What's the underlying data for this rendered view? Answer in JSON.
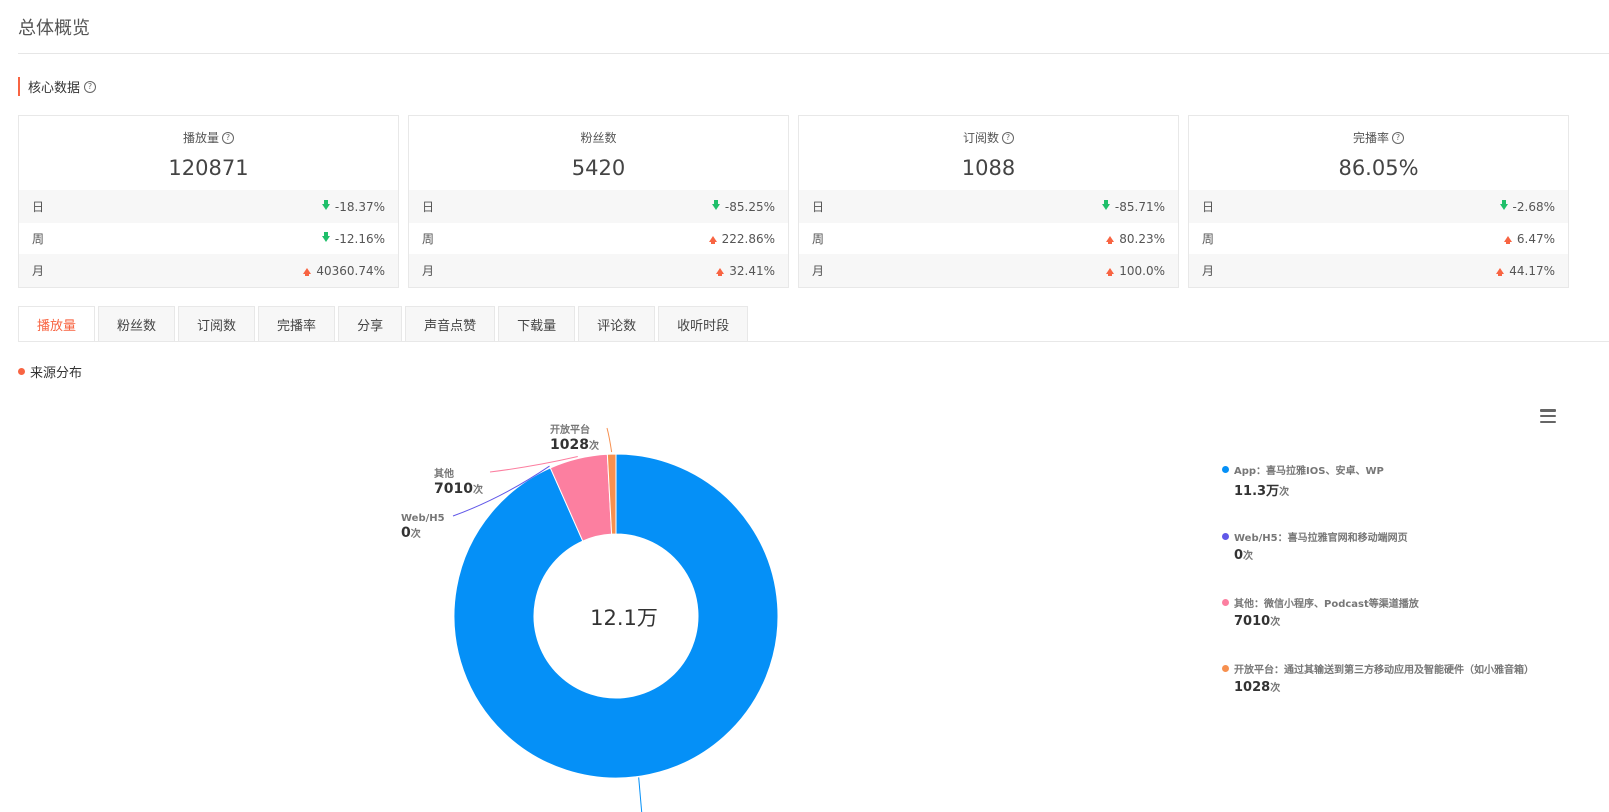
{
  "page": {
    "title": "总体概览"
  },
  "core": {
    "heading": "核心数据",
    "cards": [
      {
        "title": "播放量",
        "has_help": true,
        "value": "120871",
        "rows": [
          {
            "label": "日",
            "dir": "down",
            "change": "-18.37%"
          },
          {
            "label": "周",
            "dir": "down",
            "change": "-12.16%"
          },
          {
            "label": "月",
            "dir": "up",
            "change": "40360.74%"
          }
        ]
      },
      {
        "title": "粉丝数",
        "has_help": false,
        "value": "5420",
        "rows": [
          {
            "label": "日",
            "dir": "down",
            "change": "-85.25%"
          },
          {
            "label": "周",
            "dir": "up",
            "change": "222.86%"
          },
          {
            "label": "月",
            "dir": "up",
            "change": "32.41%"
          }
        ]
      },
      {
        "title": "订阅数",
        "has_help": true,
        "value": "1088",
        "rows": [
          {
            "label": "日",
            "dir": "down",
            "change": "-85.71%"
          },
          {
            "label": "周",
            "dir": "up",
            "change": "80.23%"
          },
          {
            "label": "月",
            "dir": "up",
            "change": "100.0%"
          }
        ]
      },
      {
        "title": "完播率",
        "has_help": true,
        "value": "86.05%",
        "rows": [
          {
            "label": "日",
            "dir": "down",
            "change": "-2.68%"
          },
          {
            "label": "周",
            "dir": "up",
            "change": "6.47%"
          },
          {
            "label": "月",
            "dir": "up",
            "change": "44.17%"
          }
        ]
      }
    ]
  },
  "tabs": [
    {
      "label": "播放量",
      "active": true
    },
    {
      "label": "粉丝数",
      "active": false
    },
    {
      "label": "订阅数",
      "active": false
    },
    {
      "label": "完播率",
      "active": false
    },
    {
      "label": "分享",
      "active": false
    },
    {
      "label": "声音点赞",
      "active": false
    },
    {
      "label": "下载量",
      "active": false
    },
    {
      "label": "评论数",
      "active": false
    },
    {
      "label": "收听时段",
      "active": false
    }
  ],
  "source": {
    "heading": "来源分布"
  },
  "chart_data": {
    "type": "pie",
    "center_label": "12.1万",
    "unit": "次",
    "series": [
      {
        "name": "App",
        "label": "",
        "value": 113000,
        "display": "11.3万",
        "color": "#0590f7",
        "legend": "App：喜马拉雅IOS、安卓、WP"
      },
      {
        "name": "Web/H5",
        "label": "Web/H5",
        "value": 0,
        "display": "0",
        "color": "#6158e8",
        "legend": "Web/H5：喜马拉雅官网和移动端网页"
      },
      {
        "name": "其他",
        "label": "其他",
        "value": 7010,
        "display": "7010",
        "color": "#fc7fa0",
        "legend": "其他：微信小程序、Podcast等渠道播放"
      },
      {
        "name": "开放平台",
        "label": "开放平台",
        "value": 1028,
        "display": "1028",
        "color": "#f7904f",
        "legend": "开放平台：通过其输送到第三方移动应用及智能硬件（如小雅音箱）"
      }
    ]
  },
  "icons": {
    "menu": "hamburger-menu-icon",
    "help": "question-circle-icon"
  },
  "colors": {
    "accent": "#f86442",
    "up": "#f86442",
    "down": "#1fbf6a"
  }
}
